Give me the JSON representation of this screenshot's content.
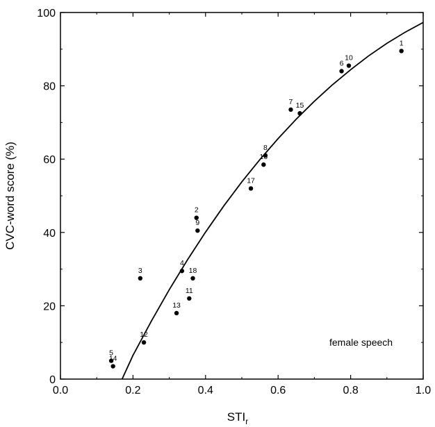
{
  "chart_data": {
    "type": "scatter",
    "title": "",
    "xlabel": "STI",
    "xlabel_subscript": "r",
    "ylabel": "CVC-word score (%)",
    "xlim": [
      0.0,
      1.0
    ],
    "ylim": [
      0,
      100
    ],
    "x_ticks": [
      "0.0",
      "0.2",
      "0.4",
      "0.6",
      "0.8",
      "1.0"
    ],
    "y_ticks": [
      "0",
      "20",
      "40",
      "60",
      "80",
      "100"
    ],
    "grid": false,
    "legend": "none",
    "annotation": "female speech",
    "points": [
      {
        "label": "1",
        "x": 0.94,
        "y": 89.5
      },
      {
        "label": "2",
        "x": 0.375,
        "y": 44.0
      },
      {
        "label": "3",
        "x": 0.22,
        "y": 27.5
      },
      {
        "label": "4",
        "x": 0.335,
        "y": 29.5
      },
      {
        "label": "5",
        "x": 0.14,
        "y": 5.0
      },
      {
        "label": "6",
        "x": 0.775,
        "y": 84.0
      },
      {
        "label": "7",
        "x": 0.635,
        "y": 73.5
      },
      {
        "label": "8",
        "x": 0.565,
        "y": 61.0
      },
      {
        "label": "9",
        "x": 0.378,
        "y": 40.5
      },
      {
        "label": "10",
        "x": 0.795,
        "y": 85.5
      },
      {
        "label": "11",
        "x": 0.355,
        "y": 22.0
      },
      {
        "label": "12",
        "x": 0.23,
        "y": 10.0
      },
      {
        "label": "13",
        "x": 0.32,
        "y": 18.0
      },
      {
        "label": "14",
        "x": 0.145,
        "y": 3.5
      },
      {
        "label": "15",
        "x": 0.66,
        "y": 72.5
      },
      {
        "label": "16",
        "x": 0.56,
        "y": 58.5
      },
      {
        "label": "17",
        "x": 0.525,
        "y": 52.0
      },
      {
        "label": "18",
        "x": 0.365,
        "y": 27.5
      }
    ],
    "fit_curve": {
      "x": [
        0.17,
        0.2,
        0.25,
        0.3,
        0.35,
        0.4,
        0.45,
        0.5,
        0.55,
        0.6,
        0.65,
        0.7,
        0.75,
        0.8,
        0.85,
        0.9,
        0.95,
        1.0
      ],
      "y": [
        0,
        6.5,
        15.7,
        24.4,
        32.5,
        40.1,
        47.2,
        53.8,
        59.9,
        65.6,
        70.9,
        75.8,
        80.3,
        84.4,
        88.2,
        91.6,
        94.6,
        97.3
      ]
    },
    "colors": {
      "marker": "#000000",
      "line": "#000000"
    }
  }
}
